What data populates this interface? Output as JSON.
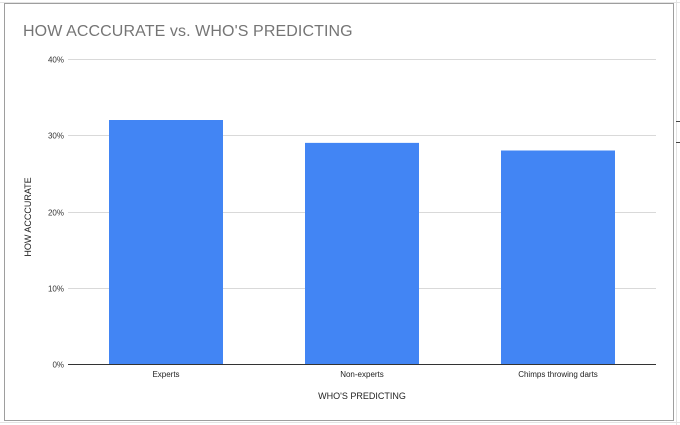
{
  "chart_data": {
    "type": "bar",
    "title": "HOW ACCCURATE vs. WHO'S PREDICTING",
    "xlabel": "WHO'S PREDICTING",
    "ylabel": "HOW ACCCURATE",
    "categories": [
      "Experts",
      "Non-experts",
      "Chimps throwing darts"
    ],
    "values": [
      0.32,
      0.29,
      0.28
    ],
    "ylim": [
      0,
      0.4
    ],
    "yticks": [
      "0%",
      "10%",
      "20%",
      "30%",
      "40%"
    ],
    "grid": true,
    "legend": "none",
    "bar_color": "#4285f4"
  }
}
